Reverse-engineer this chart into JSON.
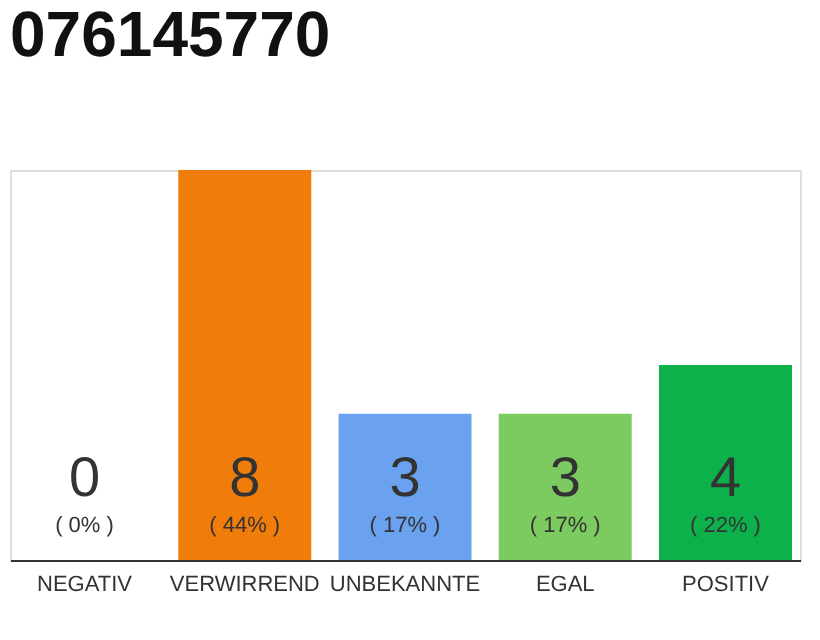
{
  "chart_data": {
    "type": "bar",
    "title": "076145770",
    "categories": [
      "NEGATIV",
      "VERWIRREND",
      "UNBEKANNTE",
      "EGAL",
      "POSITIV"
    ],
    "values": [
      0,
      8,
      3,
      3,
      4
    ],
    "colors": [
      "#efefef",
      "#f07d0a",
      "#6ba2ef",
      "#7ccb60",
      "#0db14b"
    ],
    "data_labels": true,
    "annotations": [
      "( 0% )",
      "( 44% )",
      "( 17% )",
      "( 17% )",
      "( 22% )"
    ]
  }
}
